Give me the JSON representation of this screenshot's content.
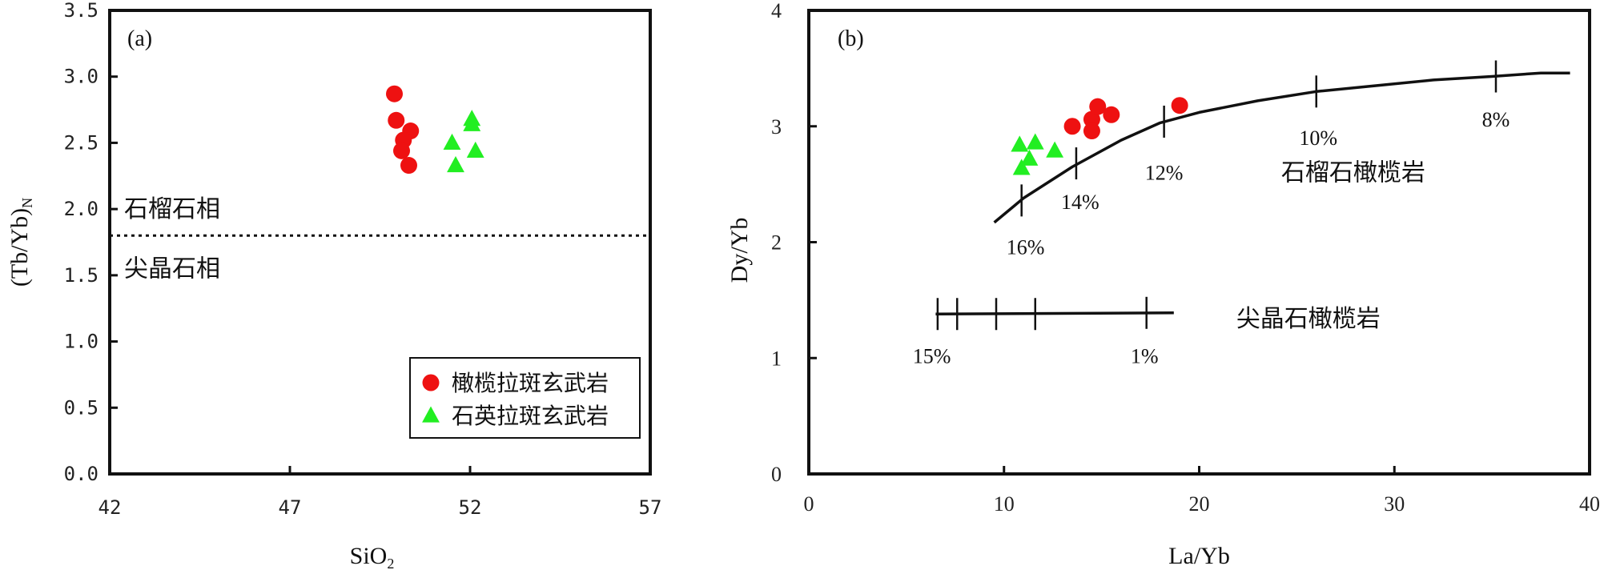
{
  "chart_data": [
    {
      "id": "a",
      "type": "scatter",
      "panel_label": "(a)",
      "xlabel": "SiO",
      "xlabel_sub": "2",
      "ylabel": "(Tb/Yb)",
      "ylabel_sub": "N",
      "xlim": [
        42,
        57
      ],
      "ylim": [
        0,
        3.5
      ],
      "xticks": [
        42,
        47,
        52,
        57
      ],
      "xtick_labels": [
        "42",
        "47",
        "52",
        "57"
      ],
      "yticks": [
        0,
        0.5,
        1.0,
        1.5,
        2.0,
        2.5,
        3.0,
        3.5
      ],
      "ytick_labels": [
        "0.0",
        "0.5",
        "1.0",
        "1.5",
        "2.0",
        "2.5",
        "3.0",
        "3.5"
      ],
      "reference_line": {
        "y": 1.8,
        "style": "dotted"
      },
      "region_labels": [
        {
          "text": "石榴石相",
          "x": 42.4,
          "y": 2.0
        },
        {
          "text": "尖晶石相",
          "x": 42.4,
          "y": 1.55
        }
      ],
      "legend": {
        "position": "bottom-right"
      },
      "series": [
        {
          "name": "橄榄拉斑玄武岩",
          "marker": "circle",
          "color": "#ee1111",
          "points": [
            [
              49.9,
              2.87
            ],
            [
              49.95,
              2.67
            ],
            [
              50.35,
              2.59
            ],
            [
              50.15,
              2.52
            ],
            [
              50.1,
              2.44
            ],
            [
              50.3,
              2.33
            ]
          ]
        },
        {
          "name": "石英拉斑玄武岩",
          "marker": "triangle",
          "color": "#22ee22",
          "points": [
            [
              51.5,
              2.5
            ],
            [
              52.05,
              2.68
            ],
            [
              52.05,
              2.64
            ],
            [
              52.15,
              2.44
            ],
            [
              51.6,
              2.33
            ]
          ]
        }
      ]
    },
    {
      "id": "b",
      "type": "scatter",
      "panel_label": "(b)",
      "xlabel": "La/Yb",
      "ylabel": "Dy/Yb",
      "xlim": [
        0,
        40
      ],
      "ylim": [
        0,
        4
      ],
      "xticks": [
        0,
        10,
        20,
        30,
        40
      ],
      "xtick_labels": [
        "0",
        "10",
        "20",
        "30",
        "40"
      ],
      "yticks": [
        0,
        1,
        2,
        3,
        4
      ],
      "ytick_labels": [
        "0",
        "1",
        "2",
        "3",
        "4"
      ],
      "curves": [
        {
          "label": "石榴石橄榄岩",
          "label_pos": [
            24.2,
            2.6
          ],
          "points": [
            [
              9.5,
              2.17
            ],
            [
              11.0,
              2.38
            ],
            [
              13.5,
              2.65
            ],
            [
              16.0,
              2.88
            ],
            [
              18.0,
              3.03
            ],
            [
              20.0,
              3.12
            ],
            [
              23.0,
              3.22
            ],
            [
              26.0,
              3.3
            ],
            [
              29.0,
              3.35
            ],
            [
              32.0,
              3.4
            ],
            [
              35.0,
              3.43
            ],
            [
              37.5,
              3.46
            ],
            [
              39.0,
              3.46
            ]
          ],
          "marks": [
            {
              "x": 10.9,
              "y": 2.36,
              "label": "16%",
              "label_pos": [
                11.1,
                1.96
              ]
            },
            {
              "x": 13.7,
              "y": 2.68,
              "label": "14%",
              "label_pos": [
                13.9,
                2.35
              ]
            },
            {
              "x": 18.2,
              "y": 3.04,
              "label": "12%",
              "label_pos": [
                18.2,
                2.6
              ]
            },
            {
              "x": 26.0,
              "y": 3.3,
              "label": "10%",
              "label_pos": [
                26.1,
                2.9
              ]
            },
            {
              "x": 35.2,
              "y": 3.43,
              "label": "8%",
              "label_pos": [
                35.2,
                3.06
              ]
            }
          ]
        },
        {
          "label": "尖晶石橄榄岩",
          "label_pos": [
            21.9,
            1.34
          ],
          "points": [
            [
              6.5,
              1.38
            ],
            [
              18.7,
              1.39
            ]
          ],
          "marks": [
            {
              "x": 6.6,
              "y": 1.38,
              "label": "15%",
              "label_pos": [
                6.3,
                1.02
              ]
            },
            {
              "x": 7.6,
              "y": 1.38,
              "label": null
            },
            {
              "x": 9.6,
              "y": 1.38,
              "label": null
            },
            {
              "x": 11.6,
              "y": 1.38,
              "label": null
            },
            {
              "x": 17.3,
              "y": 1.39,
              "label": "1%",
              "label_pos": [
                17.2,
                1.02
              ]
            }
          ]
        }
      ],
      "series": [
        {
          "name": "橄榄拉斑玄武岩",
          "marker": "circle",
          "color": "#ee1111",
          "points": [
            [
              13.5,
              3.0
            ],
            [
              14.5,
              3.06
            ],
            [
              14.5,
              2.96
            ],
            [
              14.8,
              3.17
            ],
            [
              15.5,
              3.1
            ],
            [
              19.0,
              3.18
            ]
          ]
        },
        {
          "name": "石英拉斑玄武岩",
          "marker": "triangle",
          "color": "#22ee22",
          "points": [
            [
              10.8,
              2.84
            ],
            [
              11.6,
              2.86
            ],
            [
              12.6,
              2.79
            ],
            [
              11.3,
              2.72
            ],
            [
              10.9,
              2.64
            ]
          ]
        }
      ]
    }
  ]
}
